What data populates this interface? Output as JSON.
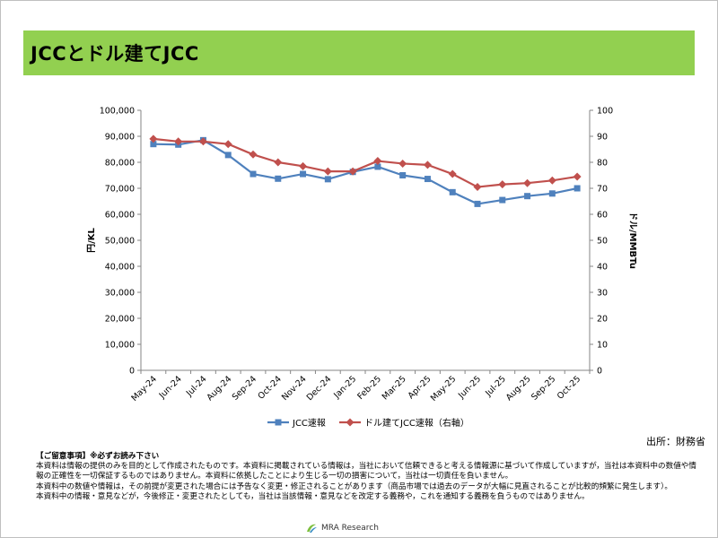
{
  "page": {
    "title": "JCCとドル建てJCC",
    "source": "出所：財務省",
    "brand": "MRA Research"
  },
  "notes": {
    "heading": "【ご留意事項】※必ずお読み下さい",
    "lines": [
      "本資料は情報の提供のみを目的として作成されたものです。本資料に掲載されている情報は，当社において信頼できると考える情報源に基づいて作成していますが，当社は本資料中の数値や情報の正確性を一切保証するものではありません。本資料に依拠したことにより生じる一切の損害について，当社は一切責任を負いません。",
      "本資料中の数値や情報は，その前提が変更された場合には予告なく変更・修正されることがあります（商品市場では過去のデータが大幅に見直されることが比較的頻繁に発生します）。",
      "本資料中の情報・意見などが，今後修正・変更されたとしても，当社は当該情報・意見などを改定する義務や，これを通知する義務を負うものではありません。"
    ]
  },
  "colors": {
    "title_bar": "#92d050",
    "series_blue": "#4f81bd",
    "series_red": "#c0504d",
    "axis": "#868686"
  },
  "chart_data": {
    "type": "line",
    "categories": [
      "May-24",
      "Jun-24",
      "Jul-24",
      "Aug-24",
      "Sep-24",
      "Oct-24",
      "Nov-24",
      "Dec-24",
      "Jan-25",
      "Feb-25",
      "Mar-25",
      "Apr-25",
      "May-25",
      "Jun-25",
      "Jul-25",
      "Aug-25",
      "Sep-25",
      "Oct-25"
    ],
    "ylabel": "円/KL",
    "y2label": "ドル/MMBTu",
    "ylim": [
      0,
      100000
    ],
    "y2lim": [
      0,
      100
    ],
    "y_ticks": [
      "0",
      "10,000",
      "20,000",
      "30,000",
      "40,000",
      "50,000",
      "60,000",
      "70,000",
      "80,000",
      "90,000",
      "100,000"
    ],
    "y2_ticks": [
      "0",
      "10",
      "20",
      "30",
      "40",
      "50",
      "60",
      "70",
      "80",
      "90",
      "100"
    ],
    "grid": false,
    "legend_position": "bottom",
    "series": [
      {
        "name": "JCC速報",
        "axis": "left",
        "color": "#4f81bd",
        "marker": "square",
        "values": [
          87000,
          86800,
          88500,
          82800,
          75500,
          73700,
          75500,
          73500,
          76300,
          78300,
          75000,
          73600,
          68500,
          64000,
          65500,
          67000,
          68000,
          70000
        ]
      },
      {
        "name": "ドル建てJCC速報（右軸）",
        "axis": "right",
        "color": "#c0504d",
        "marker": "diamond",
        "values": [
          89,
          88,
          88,
          87,
          83,
          80,
          78.5,
          76.5,
          76.5,
          80.5,
          79.5,
          79,
          75.5,
          70.5,
          71.5,
          72,
          73,
          74.5
        ]
      }
    ]
  }
}
